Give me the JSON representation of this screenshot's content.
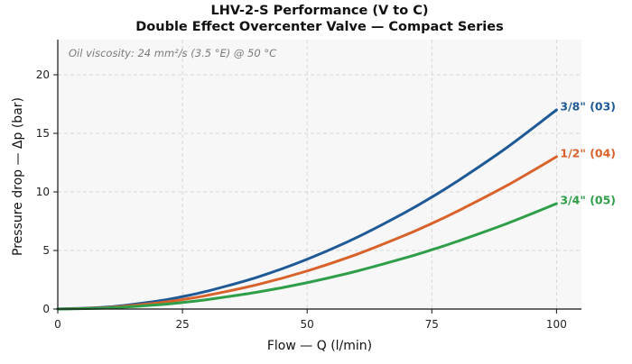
{
  "chart_data": {
    "type": "line",
    "title": "LHV-2-S Performance (V to C)",
    "subtitle": "Double Effect Overcenter Valve — Compact Series",
    "xlabel": "Flow — Q (l/min)",
    "ylabel": "Pressure drop — Δp (bar)",
    "xlim": [
      0,
      105
    ],
    "ylim": [
      0,
      23
    ],
    "xticks": [
      0,
      25,
      50,
      75,
      100
    ],
    "yticks": [
      0,
      5,
      10,
      15,
      20
    ],
    "grid": true,
    "annotation": "Oil viscosity: 24 mm²/s (3.5 °E) @ 50 °C",
    "x": [
      0,
      10,
      20,
      25,
      30,
      40,
      50,
      60,
      70,
      75,
      80,
      90,
      100
    ],
    "series": [
      {
        "name": "3/8\" (03)",
        "color": "#1f5a96",
        "values": [
          0,
          0.17,
          0.68,
          1.06,
          1.53,
          2.72,
          4.25,
          6.12,
          8.33,
          9.56,
          10.88,
          13.77,
          17.0
        ]
      },
      {
        "name": "1/2\" (04)",
        "color": "#d9622b",
        "values": [
          0,
          0.13,
          0.52,
          0.81,
          1.17,
          2.08,
          3.25,
          4.68,
          6.37,
          7.31,
          8.32,
          10.53,
          13.0
        ]
      },
      {
        "name": "3/4\" (05)",
        "color": "#2e9e49",
        "values": [
          0,
          0.09,
          0.36,
          0.56,
          0.81,
          1.44,
          2.25,
          3.24,
          4.41,
          5.06,
          5.76,
          7.29,
          9.0
        ]
      }
    ]
  }
}
